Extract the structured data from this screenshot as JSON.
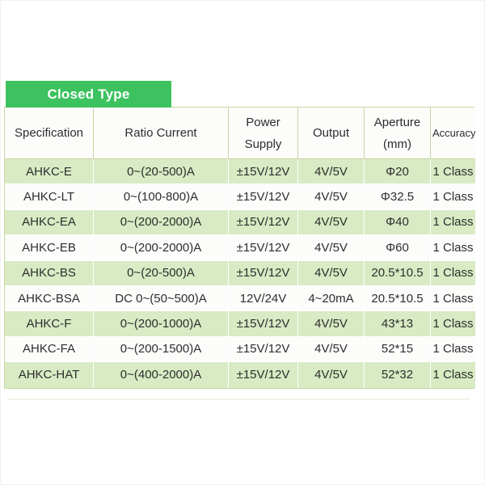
{
  "tab": {
    "label": "Closed Type",
    "color": "#3cc35f",
    "text_color": "#ffffff"
  },
  "table": {
    "columns": [
      "Specification",
      "Ratio Current",
      "Power Supply",
      "Output",
      "Aperture (mm)",
      "Accuracy"
    ],
    "rows": [
      [
        "AHKC-E",
        "0~(20-500)A",
        "±15V/12V",
        "4V/5V",
        "Φ20",
        "1 Class"
      ],
      [
        "AHKC-LT",
        "0~(100-800)A",
        "±15V/12V",
        "4V/5V",
        "Φ32.5",
        "1 Class"
      ],
      [
        "AHKC-EA",
        "0~(200-2000)A",
        "±15V/12V",
        "4V/5V",
        "Φ40",
        "1 Class"
      ],
      [
        "AHKC-EB",
        "0~(200-2000)A",
        "±15V/12V",
        "4V/5V",
        "Φ60",
        "1 Class"
      ],
      [
        "AHKC-BS",
        "0~(20-500)A",
        "±15V/12V",
        "4V/5V",
        "20.5*10.5",
        "1 Class"
      ],
      [
        "AHKC-BSA",
        "DC 0~(50~500)A",
        "12V/24V",
        "4~20mA",
        "20.5*10.5",
        "1 Class"
      ],
      [
        "AHKC-F",
        "0~(200-1000)A",
        "±15V/12V",
        "4V/5V",
        "43*13",
        "1 Class"
      ],
      [
        "AHKC-FA",
        "0~(200-1500)A",
        "±15V/12V",
        "4V/5V",
        "52*15",
        "1 Class"
      ],
      [
        "AHKC-HAT",
        "0~(400-2000)A",
        "±15V/12V",
        "4V/5V",
        "52*32",
        "1 Class"
      ]
    ],
    "column_keys": [
      "specification",
      "ratio-current",
      "power-supply",
      "output",
      "aperture",
      "accuracy"
    ],
    "colors": {
      "row_green": "#d8ebc4",
      "row_white": "#fcfcfa",
      "border_olive": "#c9d6a3",
      "header_bg": "#fcfcfa",
      "text": "#2d2d2d"
    }
  }
}
